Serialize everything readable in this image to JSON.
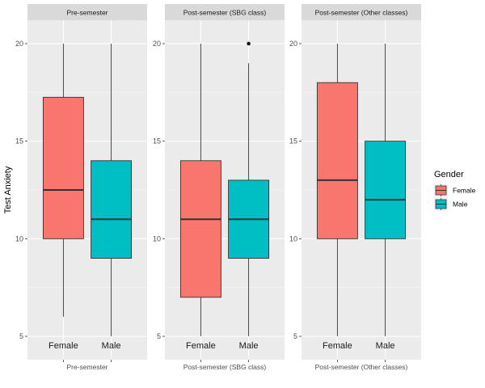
{
  "chart_data": {
    "type": "boxplot",
    "ylabel": "Test Anxiety",
    "y_ticks": [
      5,
      10,
      15,
      20
    ],
    "ylim": [
      3.8,
      21.2
    ],
    "categories": [
      "Female",
      "Male"
    ],
    "legend": {
      "title": "Gender",
      "position": "right",
      "entries": [
        {
          "label": "Female",
          "color": "#F8766D"
        },
        {
          "label": "Male",
          "color": "#00BFC4"
        }
      ]
    },
    "grid": true,
    "panels": [
      {
        "strip": "Pre-semester",
        "xlabel": "Pre-semester",
        "boxes": [
          {
            "category": "Female",
            "min": 6,
            "q1": 10,
            "median": 12.5,
            "q3": 17.25,
            "max": 20,
            "outliers": []
          },
          {
            "category": "Male",
            "min": 5,
            "q1": 9,
            "median": 11,
            "q3": 14,
            "max": 20,
            "outliers": []
          }
        ]
      },
      {
        "strip": "Post-semester (SBG class)",
        "xlabel": "Post-semester (SBG class)",
        "boxes": [
          {
            "category": "Female",
            "min": 5,
            "q1": 7,
            "median": 11,
            "q3": 14,
            "max": 20,
            "outliers": []
          },
          {
            "category": "Male",
            "min": 5,
            "q1": 9,
            "median": 11,
            "q3": 13,
            "max": 19,
            "outliers": [
              20
            ]
          }
        ]
      },
      {
        "strip": "Post-semester (Other classes)",
        "xlabel": "Post-semester (Other classes)",
        "boxes": [
          {
            "category": "Female",
            "min": 5,
            "q1": 10,
            "median": 13,
            "q3": 18,
            "max": 20,
            "outliers": []
          },
          {
            "category": "Male",
            "min": 5,
            "q1": 10,
            "median": 12,
            "q3": 15,
            "max": 20,
            "outliers": []
          }
        ]
      }
    ]
  }
}
